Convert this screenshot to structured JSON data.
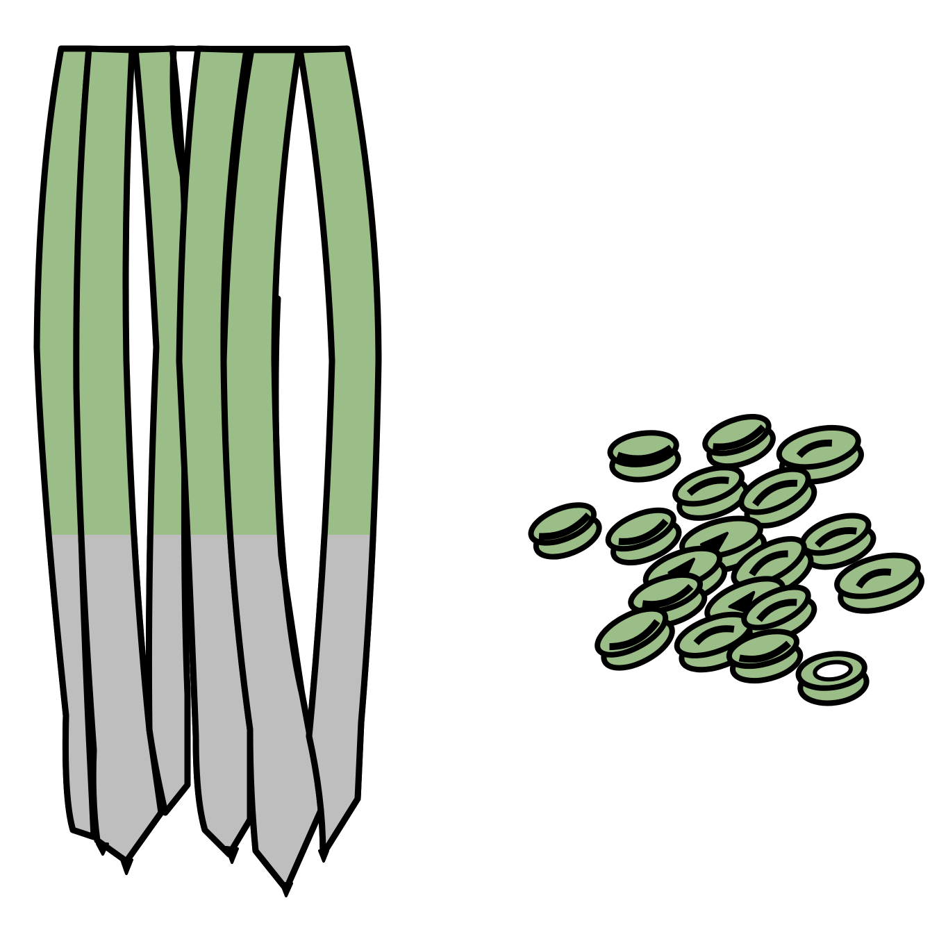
{
  "illustration": {
    "subjects": [
      {
        "name": "whole-green-onions",
        "stalk_count": 6
      },
      {
        "name": "sliced-green-onion-rings"
      }
    ],
    "colors": {
      "background": "#ffffff",
      "green": "#9bbd87",
      "white_bulb": "#bebebe",
      "outline": "#000000"
    }
  }
}
